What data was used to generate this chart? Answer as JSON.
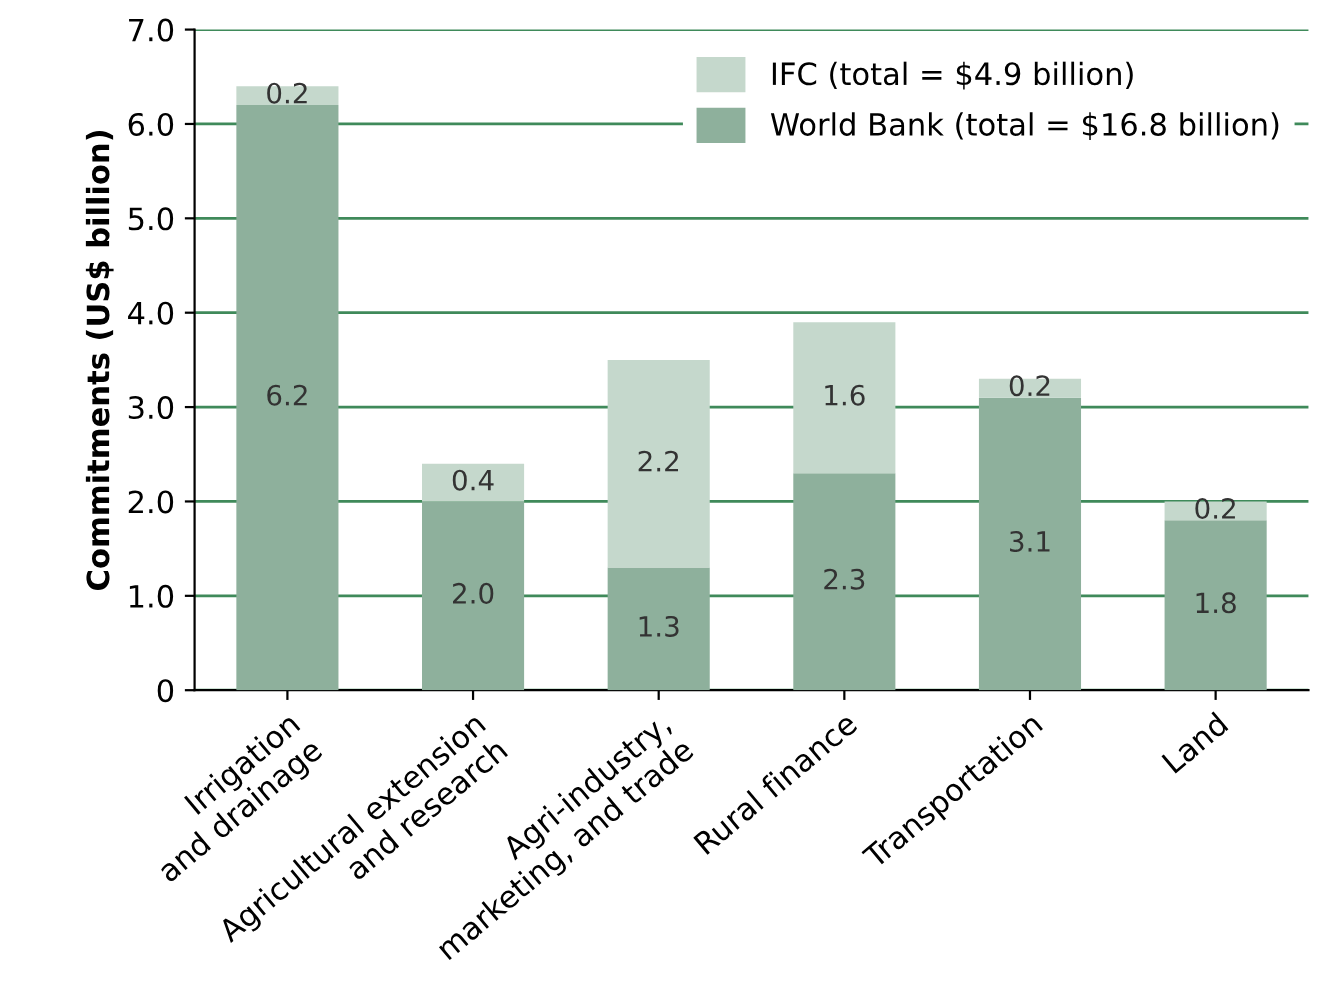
{
  "chart_data": {
    "type": "bar",
    "stacked": true,
    "ylabel": "Commitments (US$ billion)",
    "categories": [
      "Irrigation\nand drainage",
      "Agricultural extension\nand research",
      "Agri-industry,\nmarketing, and trade",
      "Rural finance",
      "Transportation",
      "Land"
    ],
    "series": [
      {
        "name": "World Bank (total = $16.8 billion)",
        "color": "#8eb09c",
        "values": [
          6.2,
          2.0,
          1.3,
          2.3,
          3.1,
          1.8
        ],
        "value_labels": [
          "6.2",
          "2.0",
          "1.3",
          "2.3",
          "3.1",
          "1.8"
        ]
      },
      {
        "name": "IFC (total = $4.9 billion)",
        "color": "#c5d8cc",
        "values": [
          0.2,
          0.4,
          2.2,
          1.6,
          0.2,
          0.2
        ],
        "value_labels": [
          "0.2",
          "0.4",
          "2.2",
          "1.6",
          "0.2",
          "0.2"
        ]
      }
    ],
    "ylim": [
      0,
      7.0
    ],
    "yticks": [
      0,
      {
        "value": 1,
        "label": "1.0"
      },
      {
        "value": 2,
        "label": "2.0"
      },
      {
        "value": 3,
        "label": "3.0"
      },
      {
        "value": 4,
        "label": "4.0"
      },
      {
        "value": 5,
        "label": "5.0"
      },
      {
        "value": 6,
        "label": "6.0"
      },
      {
        "value": 7,
        "label": "7.0"
      }
    ],
    "grid": "y",
    "legend": "top right"
  }
}
